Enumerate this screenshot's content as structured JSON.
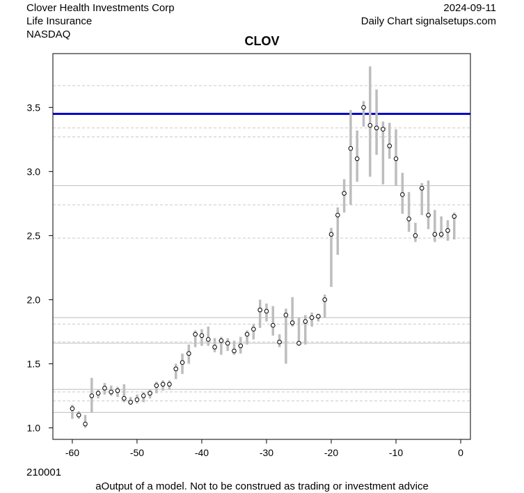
{
  "header": {
    "company": "Clover Health Investments Corp",
    "industry": "Life Insurance",
    "exchange": "NASDAQ",
    "date": "2024-09-11",
    "source": "Daily Chart signalsetups.com"
  },
  "footer": {
    "code": "210001",
    "disclaimer": "aOutput of a model. Not to be construed as trading or investment advice"
  },
  "chart_data": {
    "type": "line",
    "title": "CLOV",
    "xlim": [
      -63,
      1.5
    ],
    "ylim": [
      0.91,
      3.92
    ],
    "xticks": [
      -60,
      -50,
      -40,
      -30,
      -20,
      -10,
      0
    ],
    "yticks": [
      1.0,
      1.5,
      2.0,
      2.5,
      3.0,
      3.5
    ],
    "ytick_labels": [
      "1.0",
      "1.5",
      "2.0",
      "2.5",
      "3.0",
      "3.5"
    ],
    "colors": {
      "range_bar": "#bdbdbd",
      "level_line": "#0000cc",
      "grid_solid": "#c8c8c8",
      "grid_dashed": "#c8c8c8"
    },
    "level_line": 3.45,
    "solid_lines": [
      2.89,
      1.86,
      1.66,
      1.3,
      1.12
    ],
    "dashed_lines": [
      3.67,
      3.34,
      3.27,
      2.74,
      2.48,
      1.81,
      1.67,
      1.28,
      1.21
    ],
    "series": [
      {
        "x": [
          -60,
          -59,
          -58,
          -57,
          -56,
          -55,
          -54,
          -53,
          -52,
          -51,
          -50,
          -49,
          -48,
          -47,
          -46,
          -45,
          -44,
          -43,
          -42,
          -41,
          -40,
          -39,
          -38,
          -37,
          -36,
          -35,
          -34,
          -33,
          -32,
          -31,
          -30,
          -29,
          -28,
          -27,
          -26,
          -25,
          -24,
          -23,
          -22,
          -21,
          -20,
          -19,
          -18,
          -17,
          -16,
          -15,
          -14,
          -13,
          -12,
          -11,
          -10,
          -9,
          -8,
          -7,
          -6,
          -5,
          -4,
          -3,
          -2,
          -1
        ],
        "close": [
          1.15,
          1.1,
          1.03,
          1.25,
          1.27,
          1.31,
          1.28,
          1.29,
          1.23,
          1.2,
          1.22,
          1.25,
          1.27,
          1.33,
          1.34,
          1.34,
          1.46,
          1.51,
          1.58,
          1.73,
          1.72,
          1.69,
          1.63,
          1.68,
          1.66,
          1.6,
          1.64,
          1.73,
          1.77,
          1.92,
          1.91,
          1.8,
          1.67,
          1.88,
          1.82,
          1.66,
          1.83,
          1.86,
          1.87,
          2.0,
          2.51,
          2.66,
          2.83,
          3.18,
          3.1,
          3.5,
          3.36,
          3.34,
          3.33,
          3.2,
          3.1,
          2.82,
          2.63,
          2.5,
          2.87,
          2.66,
          2.51,
          2.51,
          2.54,
          2.65
        ],
        "high": [
          1.18,
          1.13,
          1.1,
          1.39,
          1.3,
          1.35,
          1.33,
          1.32,
          1.34,
          1.24,
          1.26,
          1.28,
          1.3,
          1.36,
          1.37,
          1.37,
          1.5,
          1.58,
          1.65,
          1.76,
          1.77,
          1.79,
          1.7,
          1.71,
          1.7,
          1.68,
          1.71,
          1.76,
          1.81,
          2.0,
          1.97,
          1.95,
          1.73,
          1.93,
          2.02,
          1.86,
          1.88,
          1.9,
          1.89,
          2.04,
          2.56,
          2.72,
          2.94,
          3.48,
          3.32,
          3.55,
          3.82,
          3.64,
          3.39,
          3.38,
          3.33,
          2.99,
          2.84,
          2.6,
          2.91,
          2.93,
          2.7,
          2.65,
          2.62,
          2.68
        ],
        "low": [
          1.07,
          1.07,
          1.0,
          1.12,
          1.23,
          1.26,
          1.25,
          1.24,
          1.2,
          1.18,
          1.19,
          1.2,
          1.23,
          1.27,
          1.29,
          1.3,
          1.38,
          1.42,
          1.5,
          1.63,
          1.64,
          1.64,
          1.59,
          1.57,
          1.6,
          1.57,
          1.58,
          1.65,
          1.69,
          1.78,
          1.83,
          1.72,
          1.63,
          1.5,
          1.79,
          1.64,
          1.65,
          1.79,
          1.83,
          1.86,
          2.1,
          2.35,
          2.68,
          2.74,
          2.92,
          3.35,
          2.96,
          3.13,
          2.9,
          3.1,
          2.89,
          2.67,
          2.53,
          2.45,
          2.66,
          2.55,
          2.45,
          2.48,
          2.46,
          2.47
        ]
      }
    ]
  }
}
